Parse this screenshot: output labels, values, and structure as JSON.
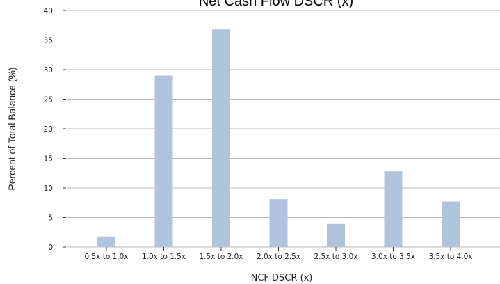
{
  "chart_data": {
    "type": "bar",
    "title": "Net Cash Flow DSCR (x)",
    "xlabel": "NCF DSCR (x)",
    "ylabel": "Percent of Total Balance (%)",
    "categories": [
      "0.5x to 1.0x",
      "1.0x to 1.5x",
      "1.5x to 2.0x",
      "2.0x to 2.5x",
      "2.5x to 3.0x",
      "3.0x to 3.5x",
      "3.5x to 4.0x"
    ],
    "values": [
      1.8,
      29.0,
      36.8,
      8.1,
      3.9,
      12.8,
      7.7
    ],
    "ylim": [
      0,
      40
    ],
    "yticks": [
      0,
      5,
      10,
      15,
      20,
      25,
      30,
      35,
      40
    ],
    "grid": true,
    "bar_color": "#b0c4de"
  }
}
